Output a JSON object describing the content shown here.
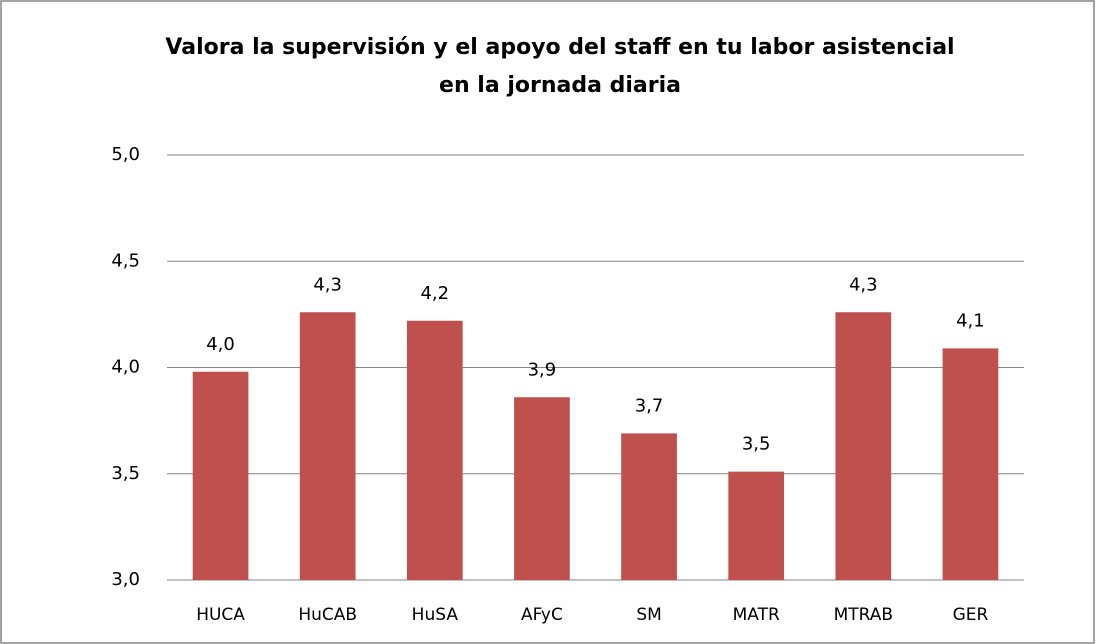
{
  "chart_data": {
    "type": "bar",
    "title": [
      "Valora la supervisión y el apoyo del staff en tu labor asistencial",
      "en la jornada diaria"
    ],
    "categories": [
      "HUCA",
      "HuCAB",
      "HuSA",
      "AFyC",
      "SM",
      "MATR",
      "MTRAB",
      "GER"
    ],
    "values": [
      3.98,
      4.26,
      4.22,
      3.86,
      3.69,
      3.51,
      4.26,
      4.09
    ],
    "value_labels": [
      "4,0",
      "4,3",
      "4,2",
      "3,9",
      "3,7",
      "3,5",
      "4,3",
      "4,1"
    ],
    "color": "#c0504d",
    "ylim": [
      3.0,
      5.0
    ],
    "yticks": [
      {
        "value": 3.0,
        "label": "3,0"
      },
      {
        "value": 3.5,
        "label": "3,5"
      },
      {
        "value": 4.0,
        "label": "4,0"
      },
      {
        "value": 4.5,
        "label": "4,5"
      },
      {
        "value": 5.0,
        "label": "5,0"
      }
    ],
    "grid": true
  }
}
